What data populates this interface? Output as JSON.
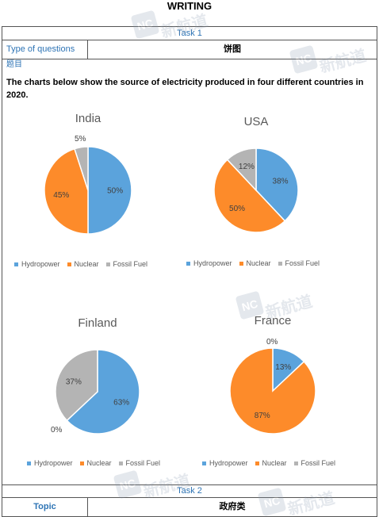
{
  "page_title": "WRITING",
  "task1": {
    "label": "Task 1",
    "type_label": "Type of questions",
    "type_value": "饼图",
    "subject_label": "题目",
    "prompt": "The charts below show the source of electricity produced in four different countries in 2020."
  },
  "colors": {
    "hydropower": "#5ba3dc",
    "nuclear": "#fd8b2a",
    "fossil_fuel": "#b4b4b4"
  },
  "legend_labels": [
    "Hydropower",
    "Nuclear",
    "Fossil Fuel"
  ],
  "chart_data": [
    {
      "type": "pie",
      "title": "India",
      "categories": [
        "Hydropower",
        "Nuclear",
        "Fossil Fuel"
      ],
      "values": [
        50,
        45,
        5
      ],
      "labels": [
        "50%",
        "45%",
        "5%"
      ],
      "legend_position": "bottom"
    },
    {
      "type": "pie",
      "title": "USA",
      "categories": [
        "Hydropower",
        "Nuclear",
        "Fossil Fuel"
      ],
      "values": [
        38,
        50,
        12
      ],
      "labels": [
        "38%",
        "50%",
        "12%"
      ],
      "legend_position": "bottom"
    },
    {
      "type": "pie",
      "title": "Finland",
      "categories": [
        "Hydropower",
        "Nuclear",
        "Fossil Fuel"
      ],
      "values": [
        63,
        0,
        37
      ],
      "labels": [
        "63%",
        "0%",
        "37%"
      ],
      "legend_position": "bottom"
    },
    {
      "type": "pie",
      "title": "France",
      "categories": [
        "Hydropower",
        "Nuclear",
        "Fossil Fuel"
      ],
      "values": [
        13,
        87,
        0
      ],
      "labels": [
        "13%",
        "87%",
        "0%"
      ],
      "legend_position": "bottom"
    }
  ],
  "task2": {
    "label": "Task 2",
    "topic_label": "Topic",
    "topic_value": "政府类"
  },
  "watermark": {
    "badge": "NC",
    "text": "新航道"
  }
}
